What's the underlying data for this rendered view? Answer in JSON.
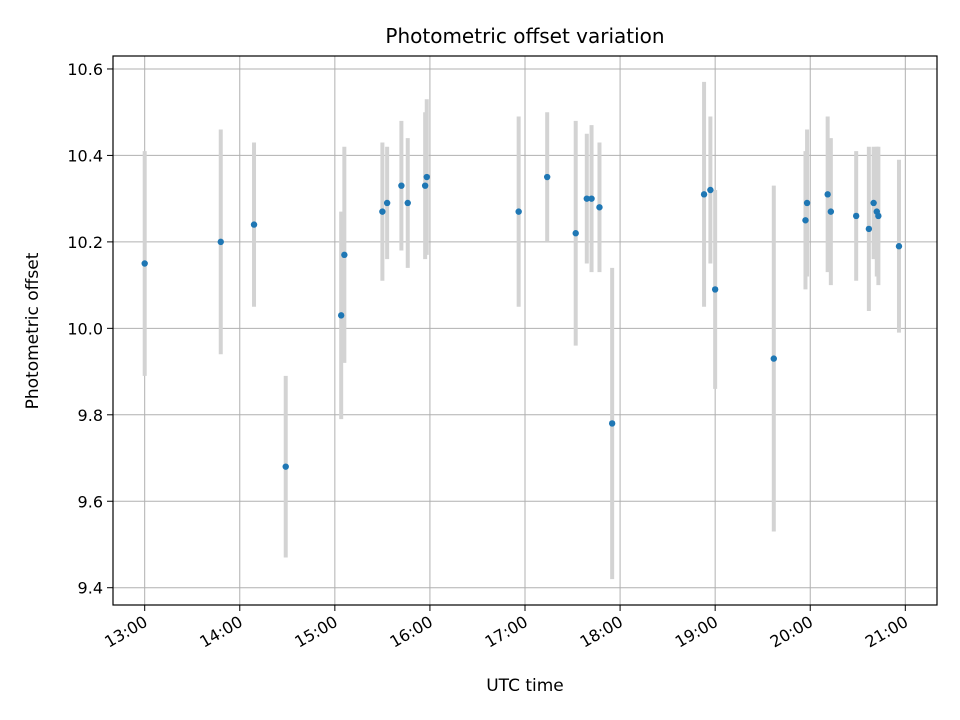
{
  "chart_data": {
    "type": "scatter",
    "title": "Photometric offset variation",
    "xlabel": "UTC time",
    "ylabel": "Photometric offset",
    "grid": true,
    "xlim": [
      "12:40",
      "21:20"
    ],
    "ylim": [
      9.36,
      10.63
    ],
    "xticks": [
      "13:00",
      "14:00",
      "15:00",
      "16:00",
      "17:00",
      "18:00",
      "19:00",
      "20:00",
      "21:00"
    ],
    "yticks": [
      9.4,
      9.6,
      9.8,
      10.0,
      10.2,
      10.4,
      10.6
    ],
    "ytick_labels": [
      "9.4",
      "9.6",
      "9.8",
      "10.0",
      "10.2",
      "10.4",
      "10.6"
    ],
    "marker_color": "#1f77b4",
    "errorbar_color": "#d3d3d3",
    "points": [
      {
        "x": "13:00",
        "y": 10.15,
        "err": 0.26
      },
      {
        "x": "13:48",
        "y": 10.2,
        "err": 0.26
      },
      {
        "x": "14:09",
        "y": 10.24,
        "err": 0.19
      },
      {
        "x": "14:29",
        "y": 9.68,
        "err": 0.21
      },
      {
        "x": "15:04",
        "y": 10.03,
        "err": 0.24
      },
      {
        "x": "15:06",
        "y": 10.17,
        "err": 0.25
      },
      {
        "x": "15:30",
        "y": 10.27,
        "err": 0.16
      },
      {
        "x": "15:33",
        "y": 10.29,
        "err": 0.13
      },
      {
        "x": "15:42",
        "y": 10.33,
        "err": 0.15
      },
      {
        "x": "15:46",
        "y": 10.29,
        "err": 0.15
      },
      {
        "x": "15:57",
        "y": 10.33,
        "err": 0.17
      },
      {
        "x": "15:58",
        "y": 10.35,
        "err": 0.18
      },
      {
        "x": "16:56",
        "y": 10.27,
        "err": 0.22
      },
      {
        "x": "17:14",
        "y": 10.35,
        "err": 0.15
      },
      {
        "x": "17:32",
        "y": 10.22,
        "err": 0.26
      },
      {
        "x": "17:39",
        "y": 10.3,
        "err": 0.15
      },
      {
        "x": "17:42",
        "y": 10.3,
        "err": 0.17
      },
      {
        "x": "17:47",
        "y": 10.28,
        "err": 0.15
      },
      {
        "x": "17:55",
        "y": 9.78,
        "err": 0.36
      },
      {
        "x": "18:53",
        "y": 10.31,
        "err": 0.26
      },
      {
        "x": "18:57",
        "y": 10.32,
        "err": 0.17
      },
      {
        "x": "19:00",
        "y": 10.09,
        "err": 0.23
      },
      {
        "x": "19:37",
        "y": 9.93,
        "err": 0.4
      },
      {
        "x": "19:57",
        "y": 10.25,
        "err": 0.16
      },
      {
        "x": "19:58",
        "y": 10.29,
        "err": 0.17
      },
      {
        "x": "20:11",
        "y": 10.31,
        "err": 0.18
      },
      {
        "x": "20:13",
        "y": 10.27,
        "err": 0.17
      },
      {
        "x": "20:29",
        "y": 10.26,
        "err": 0.15
      },
      {
        "x": "20:37",
        "y": 10.23,
        "err": 0.19
      },
      {
        "x": "20:40",
        "y": 10.29,
        "err": 0.13
      },
      {
        "x": "20:42",
        "y": 10.27,
        "err": 0.15
      },
      {
        "x": "20:43",
        "y": 10.26,
        "err": 0.16
      },
      {
        "x": "20:56",
        "y": 10.19,
        "err": 0.2
      }
    ]
  }
}
